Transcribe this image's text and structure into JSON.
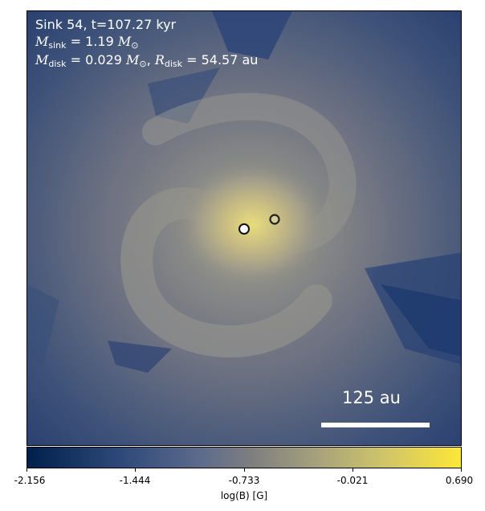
{
  "annotation": {
    "sink_line": "Sink 54, t=107.27 kyr",
    "msink_label": "M",
    "msink_sub": "sink",
    "msink_value": "= 1.19",
    "msink_unit": "M",
    "msink_unit_sub": "⊙",
    "mdisk_label": "M",
    "mdisk_sub": "disk",
    "mdisk_value": "= 0.029",
    "mdisk_unit": "M",
    "mdisk_unit_sub": "⊙",
    "rdisk_sep": ",",
    "rdisk_label": "R",
    "rdisk_sub": "disk",
    "rdisk_value": "= 54.57 au"
  },
  "scalebar": {
    "label": "125 au"
  },
  "colorbar": {
    "title": "log(B) [G]",
    "ticks": [
      "-2.156",
      "-1.444",
      "-0.733",
      "-0.021",
      "0.690"
    ],
    "colors": {
      "low": "#00204c",
      "mid": "#7f7f7f",
      "high": "#fde737"
    }
  },
  "markers": [
    {
      "name": "sink-primary",
      "fill": "#ffffff"
    },
    {
      "name": "sink-secondary",
      "fill": "#d8cf9a"
    }
  ]
}
